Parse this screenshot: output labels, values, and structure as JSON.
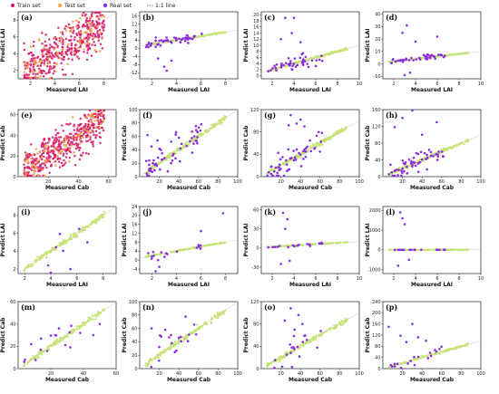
{
  "legend": [
    {
      "label": "Train set",
      "color": "#d6226e",
      "shape": "circle"
    },
    {
      "label": "Test set",
      "color": "#f3a24d",
      "shape": "circle"
    },
    {
      "label": "Real set",
      "color": "#8b2be2",
      "shape": "circle"
    },
    {
      "label": "1:1 line",
      "color": "#555555",
      "shape": "dashline"
    }
  ],
  "colors": {
    "train": "#d6226e",
    "test": "#f3a24d",
    "real": "#8b2be2",
    "fit": "#c7e37a",
    "oneone": "#bbbbbb"
  },
  "chart_data": [
    {
      "label": "(a)",
      "type": "scatter",
      "xlabel": "Measured LAI",
      "ylabel": "Predict LAI",
      "xticks": [
        "2",
        "4",
        "6",
        "8"
      ],
      "yticks": [
        "2",
        "4",
        "6",
        "8"
      ],
      "xlim": [
        1,
        9
      ],
      "ylim": [
        1,
        9
      ],
      "series": [
        {
          "name": "Train set",
          "n": 380,
          "spread": 1.3
        },
        {
          "name": "Test set",
          "n": 90,
          "spread": 1.2
        }
      ]
    },
    {
      "label": "(b)",
      "type": "scatter",
      "xlabel": "Measured LAI",
      "ylabel": "Predict LAI",
      "xticks": [
        "2",
        "4",
        "6",
        "8"
      ],
      "yticks": [
        "-12",
        "-8",
        "-4",
        "0",
        "4",
        "8",
        "12",
        "16"
      ],
      "xlim": [
        1,
        9
      ],
      "ylim": [
        -15,
        18
      ],
      "series": [
        {
          "name": "Test set",
          "n": 200
        },
        {
          "name": "Real set",
          "n": 55,
          "outliers": [
            [
              3.2,
              -11
            ],
            [
              3.0,
              -9
            ],
            [
              2.5,
              -5
            ],
            [
              3.6,
              -6
            ]
          ]
        }
      ]
    },
    {
      "label": "(c)",
      "type": "scatter",
      "xlabel": "Measured LAI",
      "ylabel": "Predict LAI",
      "xticks": [
        "2",
        "4",
        "6",
        "8",
        "10"
      ],
      "yticks": [
        "0",
        "2",
        "4",
        "6",
        "8",
        "10",
        "12",
        "14",
        "16",
        "18",
        "20"
      ],
      "xlim": [
        1,
        10
      ],
      "ylim": [
        -1,
        21
      ],
      "series": [
        {
          "name": "Test set",
          "n": 200
        },
        {
          "name": "Real set",
          "n": 50,
          "outliers": [
            [
              3.2,
              19
            ],
            [
              4.0,
              19
            ],
            [
              3.8,
              14
            ],
            [
              2.8,
              12
            ],
            [
              4.6,
              11
            ]
          ]
        }
      ]
    },
    {
      "label": "(d)",
      "type": "scatter",
      "xlabel": "Measured LAI",
      "ylabel": "Predict LAI",
      "xticks": [
        "2",
        "4",
        "6",
        "8",
        "10"
      ],
      "yticks": [
        "-10",
        "0",
        "10",
        "20",
        "30",
        "40"
      ],
      "xlim": [
        1,
        10
      ],
      "ylim": [
        -12,
        42
      ],
      "series": [
        {
          "name": "Test set",
          "n": 200
        },
        {
          "name": "Real set",
          "n": 45,
          "outliers": [
            [
              3.2,
              31
            ],
            [
              2.8,
              25
            ],
            [
              6.0,
              22
            ],
            [
              4.0,
              18
            ],
            [
              3.0,
              -9
            ],
            [
              3.5,
              -7
            ]
          ]
        }
      ]
    },
    {
      "label": "(e)",
      "type": "scatter",
      "xlabel": "Measured Cab",
      "ylabel": "Predict Cab",
      "xticks": [
        "20",
        "40",
        "60"
      ],
      "yticks": [
        "0",
        "20",
        "40",
        "60"
      ],
      "xlim": [
        0,
        65
      ],
      "ylim": [
        0,
        65
      ],
      "series": [
        {
          "name": "Train set",
          "n": 420,
          "spread": 9
        },
        {
          "name": "Test set",
          "n": 100,
          "spread": 8
        }
      ]
    },
    {
      "label": "(f)",
      "type": "scatter",
      "xlabel": "Measured Cab",
      "ylabel": "Predict Cab",
      "xticks": [
        "20",
        "40",
        "60",
        "80",
        "100"
      ],
      "yticks": [
        "0",
        "20",
        "40",
        "60",
        "80",
        "100"
      ],
      "xlim": [
        0,
        100
      ],
      "ylim": [
        0,
        100
      ],
      "series": [
        {
          "name": "Test set",
          "n": 220
        },
        {
          "name": "Real set",
          "n": 60,
          "outliers": [
            [
              8,
              62
            ],
            [
              12,
              45
            ],
            [
              18,
              54
            ],
            [
              40,
              58
            ]
          ]
        }
      ]
    },
    {
      "label": "(g)",
      "type": "scatter",
      "xlabel": "Measured Cab",
      "ylabel": "Predict Cab",
      "xticks": [
        "20",
        "40",
        "60",
        "80",
        "100"
      ],
      "yticks": [
        "0",
        "40",
        "80",
        "120"
      ],
      "xlim": [
        0,
        100
      ],
      "ylim": [
        0,
        120
      ],
      "series": [
        {
          "name": "Test set",
          "n": 220
        },
        {
          "name": "Real set",
          "n": 60,
          "outliers": [
            [
              30,
              110
            ],
            [
              40,
              102
            ],
            [
              36,
              95
            ],
            [
              28,
              92
            ],
            [
              44,
              90
            ]
          ]
        }
      ]
    },
    {
      "label": "(h)",
      "type": "scatter",
      "xlabel": "Measured Cab",
      "ylabel": "Predict Cab",
      "xticks": [
        "20",
        "40",
        "60",
        "80",
        "100"
      ],
      "yticks": [
        "0",
        "40",
        "80",
        "120",
        "160"
      ],
      "xlim": [
        0,
        100
      ],
      "ylim": [
        0,
        160
      ],
      "series": [
        {
          "name": "Test set",
          "n": 220
        },
        {
          "name": "Real set",
          "n": 60,
          "outliers": [
            [
              30,
              160
            ],
            [
              20,
              140
            ],
            [
              55,
              130
            ],
            [
              12,
              118
            ],
            [
              40,
              100
            ]
          ]
        }
      ]
    },
    {
      "label": "(i)",
      "type": "scatter",
      "xlabel": "Measured LAI",
      "ylabel": "Predict LAI",
      "xticks": [
        "2",
        "4",
        "6",
        "8"
      ],
      "yticks": [
        "2",
        "4",
        "6",
        "8"
      ],
      "xlim": [
        1.5,
        9
      ],
      "ylim": [
        1.5,
        9
      ],
      "series": [
        {
          "name": "Test set",
          "n": 160
        },
        {
          "name": "Real set",
          "n": 8,
          "outliers": [
            [
              4.0,
              1.6
            ],
            [
              3.8,
              2.4
            ],
            [
              5.5,
              2.0
            ],
            [
              6.8,
              5.0
            ]
          ]
        }
      ]
    },
    {
      "label": "(j)",
      "type": "scatter",
      "xlabel": "Measured LAI",
      "ylabel": "Predict LAI",
      "xticks": [
        "2",
        "4",
        "6",
        "8"
      ],
      "yticks": [
        "-4",
        "0",
        "4",
        "8",
        "12",
        "16",
        "20",
        "24"
      ],
      "xlim": [
        1,
        9
      ],
      "ylim": [
        -6,
        24
      ],
      "series": [
        {
          "name": "Test set",
          "n": 140
        },
        {
          "name": "Real set",
          "n": 20,
          "outliers": [
            [
              7.8,
              21
            ],
            [
              6.0,
              13
            ],
            [
              2.3,
              -5
            ],
            [
              2.6,
              -3
            ],
            [
              2.5,
              0
            ]
          ]
        }
      ]
    },
    {
      "label": "(k)",
      "type": "scatter",
      "xlabel": "Measured LAI",
      "ylabel": "Predict LAI",
      "xticks": [
        "2",
        "4",
        "6",
        "8",
        "10"
      ],
      "yticks": [
        "-30",
        "0",
        "30",
        "60"
      ],
      "xlim": [
        1,
        10
      ],
      "ylim": [
        -40,
        65
      ],
      "series": [
        {
          "name": "Test set",
          "n": 140
        },
        {
          "name": "Real set",
          "n": 22,
          "outliers": [
            [
              3.0,
              55
            ],
            [
              3.4,
              45
            ],
            [
              2.8,
              -25
            ],
            [
              3.6,
              -20
            ],
            [
              3.2,
              30
            ]
          ]
        }
      ]
    },
    {
      "label": "(l)",
      "type": "scatter",
      "xlabel": "Measured LAI",
      "ylabel": "Predict LAI",
      "xticks": [
        "2",
        "4",
        "6",
        "8",
        "10"
      ],
      "yticks": [
        "-1000",
        "0",
        "1000",
        "2000"
      ],
      "xlim": [
        1,
        10
      ],
      "ylim": [
        -1200,
        2200
      ],
      "series": [
        {
          "name": "Test set",
          "n": 140
        },
        {
          "name": "Real set",
          "n": 22,
          "outliers": [
            [
              2.6,
              1900
            ],
            [
              2.8,
              1600
            ],
            [
              3.0,
              1300
            ],
            [
              3.4,
              -500
            ],
            [
              2.4,
              -800
            ]
          ]
        }
      ]
    },
    {
      "label": "(m)",
      "type": "scatter",
      "xlabel": "Measured Cab",
      "ylabel": "Predict Cab",
      "xticks": [
        "20",
        "40",
        "60"
      ],
      "yticks": [
        "0",
        "20",
        "40",
        "60"
      ],
      "xlim": [
        0,
        60
      ],
      "ylim": [
        0,
        60
      ],
      "series": [
        {
          "name": "Test set",
          "n": 160
        },
        {
          "name": "Real set",
          "n": 18,
          "outliers": [
            [
              8,
              22
            ],
            [
              14,
              27
            ],
            [
              25,
              36
            ],
            [
              38,
              32
            ],
            [
              46,
              30
            ],
            [
              50,
              40
            ]
          ]
        }
      ]
    },
    {
      "label": "(n)",
      "type": "scatter",
      "xlabel": "Measured Cab",
      "ylabel": "Predict Cab",
      "xticks": [
        "20",
        "40",
        "60",
        "80",
        "100"
      ],
      "yticks": [
        "0",
        "20",
        "40",
        "60",
        "80",
        "100"
      ],
      "xlim": [
        0,
        100
      ],
      "ylim": [
        0,
        100
      ],
      "series": [
        {
          "name": "Test set",
          "n": 160
        },
        {
          "name": "Real set",
          "n": 20,
          "outliers": [
            [
              12,
              60
            ],
            [
              26,
              58
            ],
            [
              22,
              48
            ],
            [
              32,
              50
            ],
            [
              40,
              46
            ]
          ]
        }
      ]
    },
    {
      "label": "(o)",
      "type": "scatter",
      "xlabel": "Measured Cab",
      "ylabel": "Predict Cab",
      "xticks": [
        "20",
        "40",
        "60",
        "80",
        "100"
      ],
      "yticks": [
        "0",
        "40",
        "80",
        "120"
      ],
      "xlim": [
        0,
        100
      ],
      "ylim": [
        0,
        120
      ],
      "series": [
        {
          "name": "Test set",
          "n": 160
        },
        {
          "name": "Real set",
          "n": 24,
          "outliers": [
            [
              30,
              108
            ],
            [
              38,
              96
            ],
            [
              24,
              86
            ],
            [
              42,
              80
            ],
            [
              34,
              70
            ]
          ]
        }
      ]
    },
    {
      "label": "(p)",
      "type": "scatter",
      "xlabel": "Measured Cab",
      "ylabel": "Predict Cab",
      "xticks": [
        "20",
        "40",
        "60",
        "80",
        "100"
      ],
      "yticks": [
        "0",
        "40",
        "80",
        "120",
        "160",
        "200",
        "240"
      ],
      "xlim": [
        0,
        100
      ],
      "ylim": [
        0,
        240
      ],
      "series": [
        {
          "name": "Test set",
          "n": 160
        },
        {
          "name": "Real set",
          "n": 24,
          "outliers": [
            [
              6,
              150
            ],
            [
              30,
              160
            ],
            [
              18,
              118
            ],
            [
              36,
              112
            ],
            [
              44,
              100
            ],
            [
              24,
              95
            ]
          ]
        }
      ]
    }
  ]
}
